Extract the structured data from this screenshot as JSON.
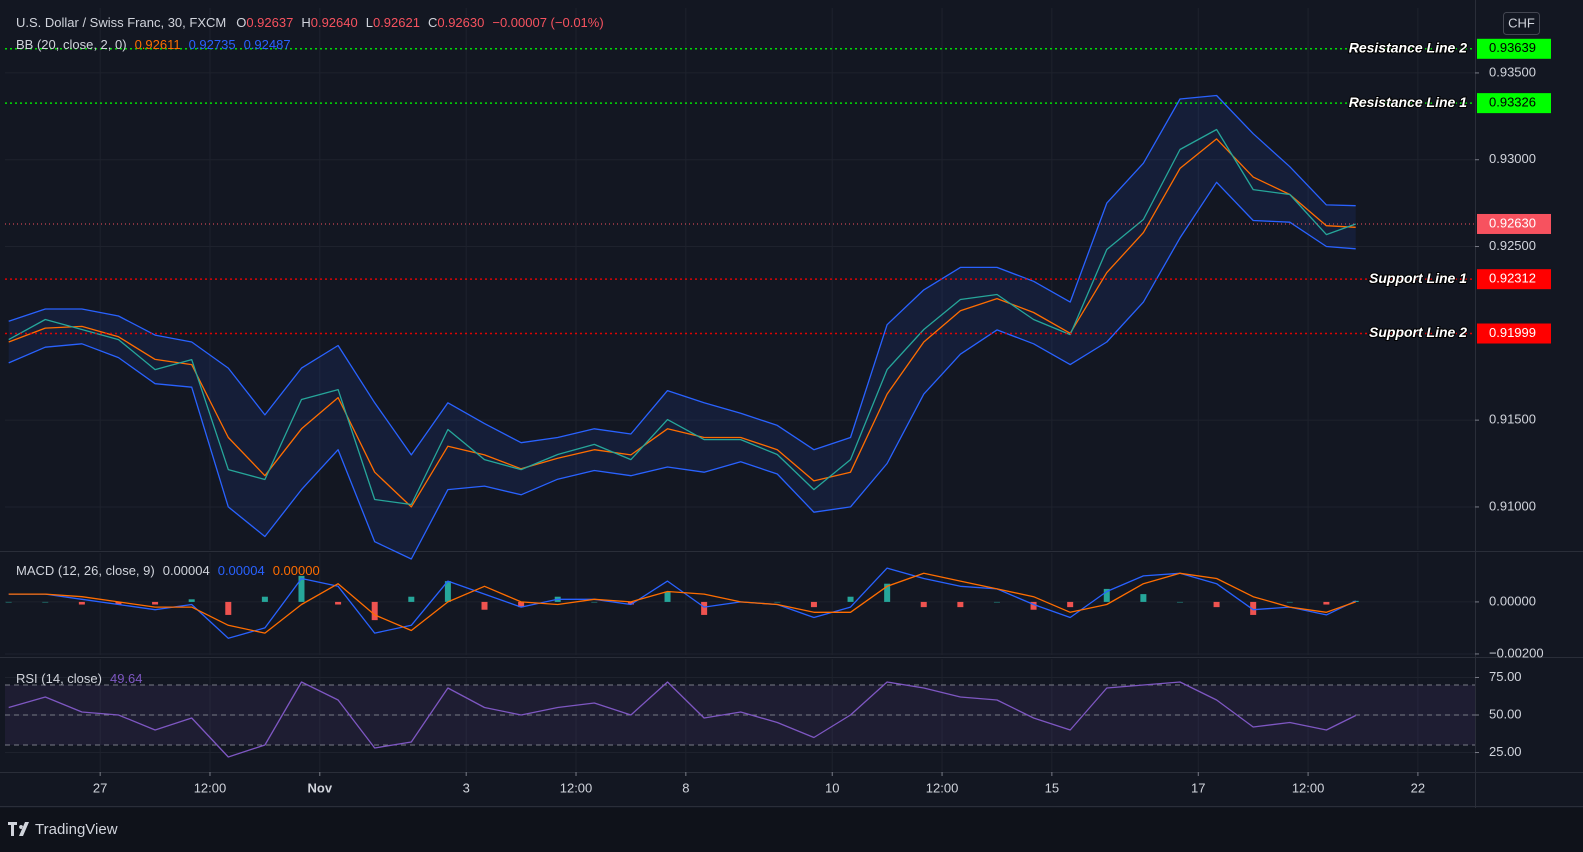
{
  "chart_data": [
    {
      "type": "line",
      "title": "U.S. Dollar / Swiss Franc, 30, FXCM",
      "quote": [
        {
          "label": "O",
          "value": "0.92637"
        },
        {
          "label": "H",
          "value": "0.92640"
        },
        {
          "label": "L",
          "value": "0.92621"
        },
        {
          "label": "C",
          "value": "0.92630"
        }
      ],
      "change": "−0.00007 (−0.01%)",
      "quote_color": "#f7525f",
      "indicator": "BB (20, close, 2, 0)",
      "currency": "CHF",
      "x": [
        -1.25,
        -0.75,
        -0.25,
        0.25,
        0.75,
        1.25,
        1.75,
        2.25,
        2.75,
        3.25,
        3.75,
        4.25,
        4.75,
        5.25,
        5.75,
        6.25,
        6.75,
        7.25,
        7.75,
        8.25,
        8.75,
        9.25,
        9.75,
        10.25,
        10.75,
        11.25,
        11.75,
        12.25,
        12.75,
        13.25,
        13.75,
        14.25,
        14.75,
        15.25,
        15.75,
        16.25,
        16.75,
        17.15
      ],
      "xlim": [
        -1.3,
        18.78
      ],
      "xticks": [
        {
          "value": 0,
          "label": "27"
        },
        {
          "value": 1.5,
          "label": "12:00"
        },
        {
          "value": 3,
          "label": "Nov"
        },
        {
          "value": 5,
          "label": "3"
        },
        {
          "value": 6.5,
          "label": "12:00"
        },
        {
          "value": 8,
          "label": "8"
        },
        {
          "value": 10,
          "label": "10"
        },
        {
          "value": 11.5,
          "label": "12:00"
        },
        {
          "value": 13,
          "label": "15"
        },
        {
          "value": 15,
          "label": "17"
        },
        {
          "value": 16.5,
          "label": "12:00"
        },
        {
          "value": 18,
          "label": "22"
        }
      ],
      "ylim": [
        0.90752,
        0.93874
      ],
      "yticks": [
        {
          "value": 0.935,
          "label": "0.93500"
        },
        {
          "value": 0.93,
          "label": "0.93000"
        },
        {
          "value": 0.925,
          "label": "0.92500"
        },
        {
          "value": 0.915,
          "label": "0.91500"
        },
        {
          "value": 0.91,
          "label": "0.91000"
        }
      ],
      "band_fill": "rgba(41,98,255,0.10)",
      "series": [
        {
          "color": "#26a69a",
          "values": [
            0.91964,
            0.9208,
            0.92022,
            0.91964,
            0.91791,
            0.91849,
            0.91215,
            0.91158,
            0.91619,
            0.91676,
            0.91043,
            0.91014,
            0.91446,
            0.91273,
            0.91215,
            0.91302,
            0.9136,
            0.91273,
            0.91503,
            0.91388,
            0.91388,
            0.91302,
            0.911,
            0.91273,
            0.91791,
            0.92022,
            0.92195,
            0.92224,
            0.9208,
            0.91993,
            0.92483,
            0.92656,
            0.93059,
            0.93174,
            0.92828,
            0.928,
            0.92569,
            0.9263
          ]
        },
        {
          "color": "#ff6d00",
          "values": [
            0.9195,
            0.9203,
            0.9204,
            0.9198,
            0.9185,
            0.9182,
            0.914,
            0.9118,
            0.9145,
            0.9163,
            0.912,
            0.91,
            0.9135,
            0.913,
            0.9122,
            0.9128,
            0.9133,
            0.913,
            0.9145,
            0.914,
            0.914,
            0.9133,
            0.9115,
            0.912,
            0.9165,
            0.9195,
            0.9213,
            0.922,
            0.9212,
            0.92,
            0.9235,
            0.9258,
            0.9295,
            0.9312,
            0.929,
            0.928,
            0.9262,
            0.92611
          ]
        },
        {
          "color": "#2962ff",
          "values": [
            0.9207,
            0.9214,
            0.9214,
            0.921,
            0.9199,
            0.9195,
            0.918,
            0.9153,
            0.918,
            0.9193,
            0.916,
            0.913,
            0.916,
            0.9148,
            0.9137,
            0.914,
            0.9145,
            0.9142,
            0.9167,
            0.916,
            0.9154,
            0.9147,
            0.9133,
            0.914,
            0.9205,
            0.9225,
            0.9238,
            0.9238,
            0.923,
            0.9218,
            0.9275,
            0.9298,
            0.9335,
            0.9337,
            0.9315,
            0.9296,
            0.9274,
            0.92735
          ]
        },
        {
          "color": "#2962ff",
          "values": [
            0.9183,
            0.9192,
            0.9194,
            0.9186,
            0.9171,
            0.9169,
            0.91,
            0.9083,
            0.911,
            0.9133,
            0.908,
            0.907,
            0.911,
            0.9112,
            0.9107,
            0.9116,
            0.9121,
            0.9118,
            0.9123,
            0.912,
            0.9126,
            0.9119,
            0.9097,
            0.91,
            0.9125,
            0.9165,
            0.9188,
            0.9202,
            0.9194,
            0.9182,
            0.9195,
            0.9218,
            0.9255,
            0.9287,
            0.9265,
            0.9264,
            0.925,
            0.92487
          ]
        }
      ],
      "levels": [
        {
          "label": "Resistance Line 2",
          "value": 0.93639,
          "color": "#00ff00"
        },
        {
          "label": "Resistance Line 1",
          "value": 0.93326,
          "color": "#00ff00"
        },
        {
          "label": "Support Line 1",
          "value": 0.92312,
          "color": "#ff0000"
        },
        {
          "label": "Support Line 2",
          "value": 0.91999,
          "color": "#ff0000"
        }
      ],
      "last_price": {
        "value": 0.9263,
        "label": "0.92630",
        "color": "#f7525f"
      }
    },
    {
      "type": "line",
      "indicator": "MACD (12, 26, close, 9)",
      "legend_values": [
        "0.00004",
        "0.00004",
        "0.00000"
      ],
      "ylim": [
        -0.00204,
        0.00188
      ],
      "yticks": [
        {
          "value": 0,
          "label": "0.00000"
        },
        {
          "value": -0.002,
          "label": "−0.00200"
        }
      ],
      "series": [
        {
          "type": "histogram",
          "colors": {
            "positive": "#26a69a",
            "negative": "#ef5350"
          },
          "values": [
            0,
            0,
            -0.0001,
            -0.0001,
            -0.0001,
            0.0001,
            -0.0005,
            0.0002,
            0.001,
            -0.0001,
            -0.0007,
            0.0002,
            0.0008,
            -0.0003,
            -0.0002,
            0.0002,
            0,
            -0.0001,
            0.0004,
            -0.0005,
            0,
            0,
            -0.0002,
            0.0002,
            0.0007,
            -0.0002,
            -0.0002,
            0,
            -0.0003,
            -0.0002,
            0.0005,
            0.0003,
            0,
            -0.0002,
            -0.0005,
            0,
            -0.0001,
            4e-05
          ]
        },
        {
          "color": "#2962ff",
          "values": [
            0.0003,
            0.0003,
            0.0001,
            -0.0001,
            -0.0003,
            -0.0001,
            -0.0014,
            -0.001,
            0.0009,
            0.0006,
            -0.0012,
            -0.0009,
            0.0008,
            0.0003,
            -0.0002,
            0.0001,
            0.0001,
            -0.0001,
            0.0008,
            -0.0002,
            0,
            -0.0001,
            -0.0006,
            -0.0002,
            0.0013,
            0.0009,
            0.0006,
            0.0005,
            -0.0001,
            -0.0006,
            0.0004,
            0.001,
            0.0011,
            0.0007,
            -0.0003,
            -0.0002,
            -0.0005,
            4e-05
          ]
        },
        {
          "color": "#ff6d00",
          "values": [
            0.0003,
            0.0003,
            0.0002,
            0,
            -0.0002,
            -0.0002,
            -0.0009,
            -0.0012,
            -0.0001,
            0.0007,
            -0.0005,
            -0.0011,
            0,
            0.0006,
            0,
            -0.0001,
            0.0001,
            0,
            0.0004,
            0.0003,
            0,
            -0.0001,
            -0.0004,
            -0.0004,
            0.0006,
            0.0011,
            0.0008,
            0.0005,
            0.0002,
            -0.0004,
            -0.0001,
            0.0007,
            0.0011,
            0.0009,
            0.0002,
            -0.0002,
            -0.0004,
            0
          ]
        }
      ]
    },
    {
      "type": "line",
      "indicator": "RSI (14, close)",
      "ylim": [
        12.7,
        87.3
      ],
      "yticks": [
        {
          "value": 75,
          "label": "75.00"
        },
        {
          "value": 50,
          "label": "50.00"
        },
        {
          "value": 25,
          "label": "25.00"
        }
      ],
      "guides": [
        70,
        50,
        30
      ],
      "band_fill": "rgba(126,87,194,0.10)",
      "series": [
        {
          "color": "#7e57c2",
          "values": [
            55,
            62,
            52,
            50,
            40,
            48,
            22,
            30,
            72,
            60,
            28,
            32,
            68,
            55,
            50,
            55,
            58,
            50,
            72,
            48,
            52,
            45,
            35,
            50,
            72,
            68,
            62,
            60,
            48,
            40,
            68,
            70,
            72,
            60,
            42,
            45,
            40,
            49.64
          ]
        }
      ]
    }
  ],
  "branding": "TradingView"
}
